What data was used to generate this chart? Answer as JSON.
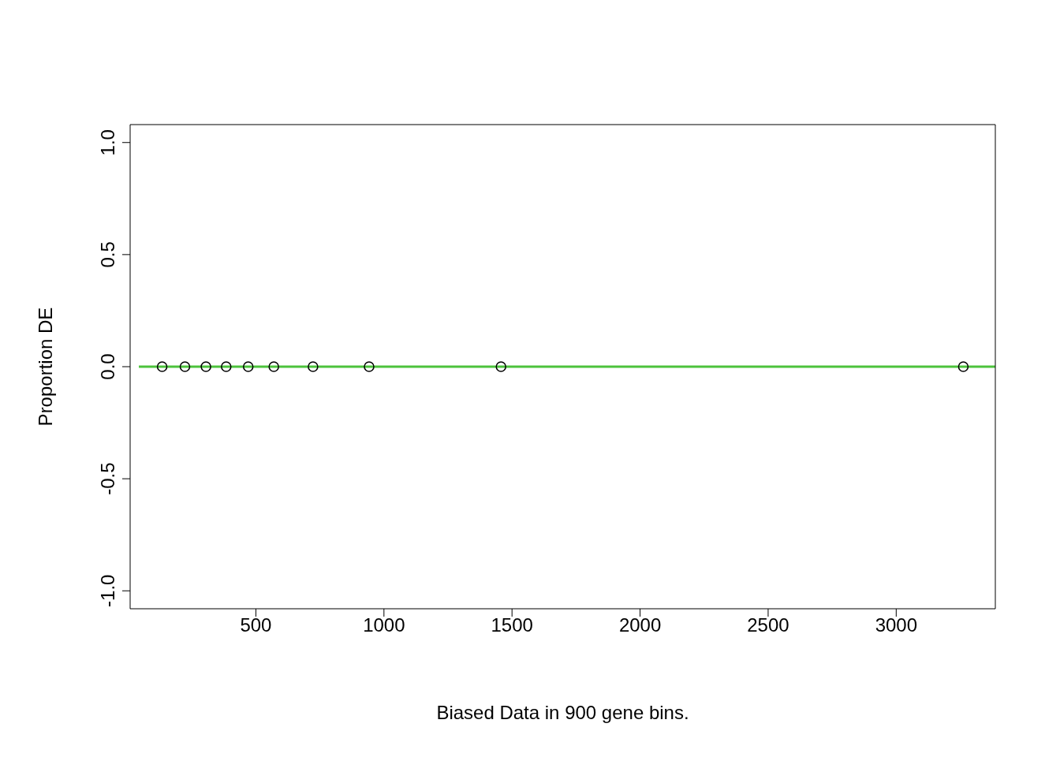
{
  "chart_data": {
    "type": "scatter",
    "xlabel": "Biased Data in 900 gene bins.",
    "ylabel": "Proportion DE",
    "xlim": [
      9,
      3387
    ],
    "ylim": [
      -1.08,
      1.08
    ],
    "xticks": [
      500,
      1000,
      1500,
      2000,
      2500,
      3000
    ],
    "yticks": [
      {
        "value": -1,
        "label": "-1.0"
      },
      {
        "value": -0.5,
        "label": "-0.5"
      },
      {
        "value": 0,
        "label": "0.0"
      },
      {
        "value": 0.5,
        "label": "0.5"
      },
      {
        "value": 1,
        "label": "1.0"
      }
    ],
    "grid": false,
    "legend": false,
    "series": [
      {
        "marker": "circle",
        "color": "#000000",
        "x": [
          134,
          223,
          305,
          384,
          470,
          570,
          723,
          942,
          1457,
          3262
        ],
        "values": [
          0,
          0,
          0,
          0,
          0,
          0,
          0,
          0,
          0,
          0
        ]
      },
      {
        "type": "line",
        "color": "#4cc33c",
        "line_style": "solid",
        "x": [
          43,
          3387
        ],
        "values": [
          0,
          0
        ]
      }
    ]
  }
}
